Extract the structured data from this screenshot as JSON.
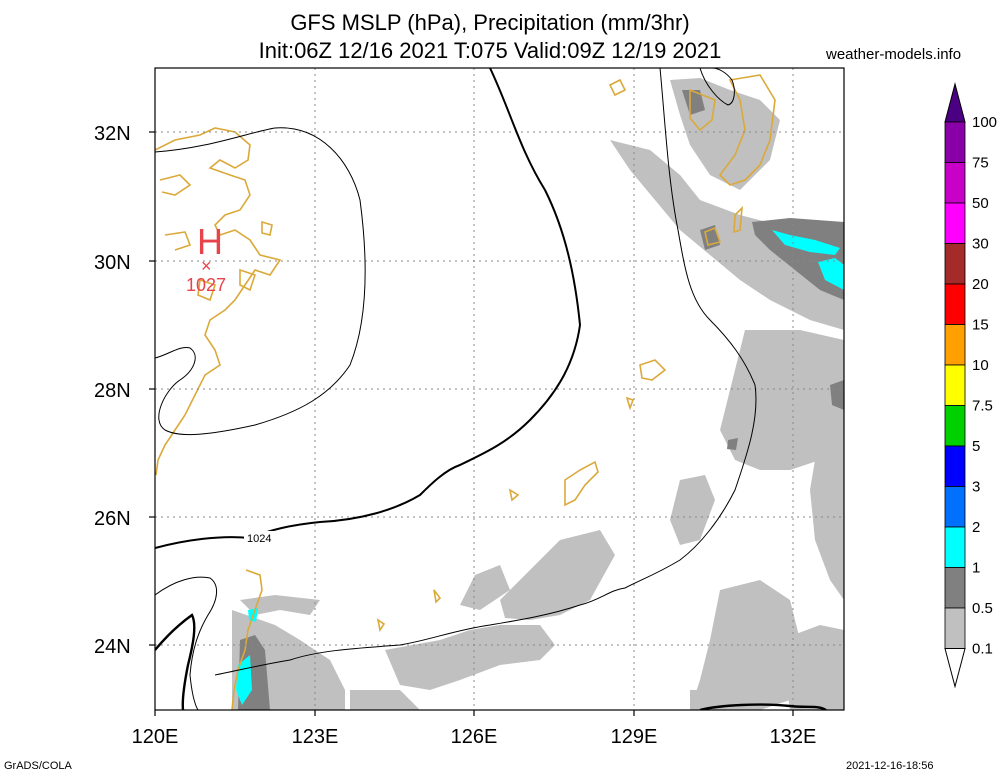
{
  "header": {
    "title_line1": "GFS MSLP (hPa), Precipitation (mm/3hr)",
    "title_line2": "Init:06Z 12/16 2021 T:075 Valid:09Z 12/19 2021",
    "site": "weather-models.info"
  },
  "map": {
    "lat_labels": [
      "32N",
      "30N",
      "28N",
      "26N",
      "24N"
    ],
    "lon_labels": [
      "120E",
      "123E",
      "126E",
      "129E",
      "132E"
    ],
    "high_symbol": "H",
    "high_marker": "×",
    "high_value": "1027",
    "isobar_label": "1024",
    "colors": {
      "coast": "#dba93a",
      "isobar": "#000000",
      "high": "#e8424a",
      "precip_light": "#c0c0c0",
      "precip_mid": "#808080",
      "precip_cyan": "#00ffff"
    }
  },
  "colorbar": {
    "labels": [
      "100",
      "75",
      "50",
      "30",
      "20",
      "15",
      "10",
      "7.5",
      "5",
      "3",
      "2",
      "1",
      "0.5",
      "0.1"
    ],
    "colors": [
      "#4b0083",
      "#8a00a8",
      "#c800c8",
      "#ff00ff",
      "#a52a2a",
      "#ff0000",
      "#ffa000",
      "#ffff00",
      "#00d000",
      "#0000ff",
      "#0070ff",
      "#00ffff",
      "#808080",
      "#c0c0c0"
    ]
  },
  "footer": {
    "left": "GrADS/COLA",
    "right": "2021-12-16-18:56"
  }
}
